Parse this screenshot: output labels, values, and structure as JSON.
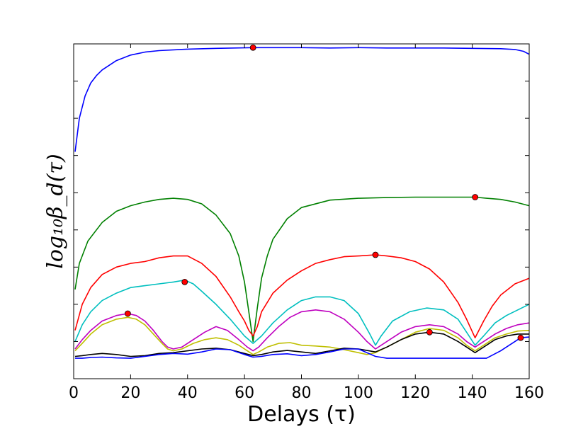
{
  "chart_data": {
    "type": "line",
    "title": "",
    "xlabel": "Delays (τ)",
    "ylabel": "log₁₀β_d(τ)",
    "xlim": [
      0,
      160
    ],
    "ylim": [
      0,
      9
    ],
    "grid": false,
    "legend": "none",
    "x_ticks": [
      0,
      20,
      40,
      60,
      80,
      100,
      120,
      140,
      160
    ],
    "x_tick_labels": [
      "0",
      "20",
      "40",
      "60",
      "80",
      "100",
      "120",
      "140",
      "160"
    ],
    "y_ticks": [
      1,
      2,
      3,
      4,
      5,
      6,
      7,
      8,
      9
    ],
    "y_tick_labels": [
      "",
      "",
      "",
      "",
      "",
      "",
      "",
      "",
      ""
    ],
    "series": [
      {
        "color": "#0000ff",
        "x": [
          0.5,
          1,
          2,
          4,
          6,
          8,
          10,
          15,
          20,
          25,
          30,
          40,
          50,
          63,
          70,
          80,
          90,
          100,
          110,
          120,
          130,
          140,
          150,
          155,
          158,
          160
        ],
        "values": [
          6.1,
          6.4,
          7.0,
          7.6,
          7.95,
          8.15,
          8.3,
          8.55,
          8.7,
          8.78,
          8.82,
          8.86,
          8.88,
          8.9,
          8.9,
          8.9,
          8.89,
          8.9,
          8.89,
          8.89,
          8.89,
          8.88,
          8.87,
          8.85,
          8.8,
          8.72
        ],
        "marker": {
          "x": 63,
          "y": 8.9
        }
      },
      {
        "color": "#008000",
        "x": [
          0.5,
          2,
          5,
          10,
          15,
          20,
          25,
          30,
          35,
          40,
          45,
          50,
          55,
          58,
          60,
          61.5,
          63,
          64.5,
          66,
          68,
          70,
          75,
          80,
          90,
          100,
          110,
          120,
          130,
          140,
          141,
          145,
          150,
          155,
          160
        ],
        "values": [
          2.4,
          3.1,
          3.7,
          4.2,
          4.5,
          4.65,
          4.75,
          4.82,
          4.85,
          4.82,
          4.7,
          4.4,
          3.9,
          3.3,
          2.6,
          1.8,
          1.0,
          1.9,
          2.7,
          3.3,
          3.75,
          4.3,
          4.6,
          4.8,
          4.85,
          4.87,
          4.88,
          4.88,
          4.88,
          4.88,
          4.85,
          4.82,
          4.75,
          4.65
        ],
        "marker": {
          "x": 141,
          "y": 4.88
        }
      },
      {
        "color": "#ff0000",
        "x": [
          0.5,
          3,
          6,
          10,
          15,
          20,
          25,
          30,
          35,
          40,
          45,
          50,
          55,
          58,
          60,
          61.5,
          63,
          64.5,
          66,
          70,
          75,
          80,
          85,
          90,
          95,
          100,
          106,
          110,
          115,
          120,
          125,
          130,
          135,
          138,
          141,
          144,
          147,
          150,
          155,
          160
        ],
        "values": [
          1.3,
          2.0,
          2.45,
          2.8,
          3.0,
          3.1,
          3.15,
          3.25,
          3.3,
          3.3,
          3.1,
          2.75,
          2.2,
          1.8,
          1.55,
          1.3,
          1.15,
          1.4,
          1.8,
          2.3,
          2.65,
          2.9,
          3.1,
          3.2,
          3.28,
          3.3,
          3.33,
          3.3,
          3.25,
          3.15,
          2.95,
          2.6,
          2.05,
          1.6,
          1.1,
          1.55,
          1.95,
          2.25,
          2.55,
          2.7
        ],
        "marker": {
          "x": 106,
          "y": 3.33
        }
      },
      {
        "color": "#00bfbf",
        "x": [
          0.5,
          3,
          6,
          10,
          15,
          20,
          25,
          30,
          35,
          39,
          42,
          45,
          50,
          55,
          60,
          63,
          66,
          70,
          75,
          80,
          85,
          90,
          95,
          100,
          104,
          106,
          108,
          112,
          118,
          124,
          130,
          135,
          138,
          141,
          144,
          148,
          152,
          156,
          160
        ],
        "values": [
          1.0,
          1.45,
          1.8,
          2.1,
          2.3,
          2.45,
          2.5,
          2.55,
          2.6,
          2.65,
          2.55,
          2.35,
          2.0,
          1.6,
          1.15,
          0.95,
          1.15,
          1.5,
          1.85,
          2.1,
          2.2,
          2.2,
          2.1,
          1.75,
          1.2,
          0.9,
          1.15,
          1.55,
          1.8,
          1.9,
          1.85,
          1.6,
          1.25,
          0.9,
          1.15,
          1.5,
          1.7,
          1.85,
          2.0
        ],
        "marker": {
          "x": 39,
          "y": 2.6
        }
      },
      {
        "color": "#bf00bf",
        "x": [
          0.5,
          3,
          6,
          10,
          15,
          19,
          22,
          25,
          28,
          31,
          33,
          35,
          38,
          42,
          46,
          50,
          54,
          58,
          61,
          63,
          65,
          68,
          72,
          76,
          80,
          85,
          90,
          95,
          100,
          103,
          106,
          110,
          115,
          120,
          125,
          130,
          135,
          138,
          141,
          144,
          148,
          152,
          156,
          160
        ],
        "values": [
          0.8,
          1.05,
          1.3,
          1.55,
          1.7,
          1.75,
          1.7,
          1.55,
          1.3,
          1.0,
          0.85,
          0.8,
          0.85,
          1.05,
          1.25,
          1.4,
          1.3,
          1.05,
          0.85,
          0.75,
          0.85,
          1.1,
          1.4,
          1.65,
          1.8,
          1.85,
          1.8,
          1.6,
          1.25,
          1.0,
          0.8,
          1.0,
          1.25,
          1.4,
          1.45,
          1.4,
          1.2,
          1.0,
          0.85,
          1.0,
          1.2,
          1.35,
          1.45,
          1.5
        ],
        "marker": {
          "x": 19,
          "y": 1.75
        }
      },
      {
        "color": "#bfbf00",
        "x": [
          0.5,
          3,
          6,
          10,
          15,
          19,
          22,
          25,
          28,
          31,
          33,
          35,
          38,
          42,
          46,
          50,
          54,
          58,
          61,
          63,
          65,
          68,
          72,
          76,
          80,
          85,
          90,
          95,
          100,
          103,
          106,
          110,
          115,
          120,
          125,
          130,
          135,
          138,
          141,
          144,
          148,
          152,
          156,
          160
        ],
        "values": [
          0.75,
          0.95,
          1.2,
          1.45,
          1.6,
          1.65,
          1.6,
          1.45,
          1.2,
          0.95,
          0.8,
          0.75,
          0.8,
          0.95,
          1.05,
          1.1,
          1.05,
          0.9,
          0.75,
          0.65,
          0.72,
          0.85,
          0.95,
          0.97,
          0.9,
          0.88,
          0.85,
          0.78,
          0.7,
          0.65,
          0.7,
          0.85,
          1.05,
          1.25,
          1.35,
          1.3,
          1.1,
          0.9,
          0.75,
          0.9,
          1.1,
          1.2,
          1.28,
          1.3
        ],
        "marker": null
      },
      {
        "color": "#000000",
        "x": [
          0.5,
          3,
          6,
          10,
          15,
          20,
          25,
          30,
          35,
          40,
          45,
          50,
          55,
          60,
          63,
          66,
          70,
          75,
          80,
          85,
          90,
          95,
          100,
          106,
          110,
          115,
          120,
          125,
          130,
          135,
          138,
          141,
          144,
          148,
          152,
          156,
          160
        ],
        "values": [
          0.6,
          0.62,
          0.65,
          0.68,
          0.65,
          0.6,
          0.62,
          0.68,
          0.7,
          0.75,
          0.8,
          0.82,
          0.78,
          0.68,
          0.62,
          0.65,
          0.72,
          0.76,
          0.72,
          0.68,
          0.75,
          0.82,
          0.8,
          0.72,
          0.85,
          1.05,
          1.2,
          1.25,
          1.2,
          1.0,
          0.85,
          0.7,
          0.85,
          1.05,
          1.15,
          1.2,
          1.2
        ],
        "marker": {
          "x": 125,
          "y": 1.25
        }
      },
      {
        "color": "#0000ff",
        "x": [
          0.5,
          3,
          6,
          10,
          15,
          20,
          25,
          30,
          35,
          40,
          45,
          50,
          55,
          60,
          63,
          66,
          70,
          75,
          80,
          85,
          90,
          95,
          100,
          106,
          110,
          115,
          120,
          130,
          140,
          145,
          150,
          155,
          157,
          160
        ],
        "values": [
          0.55,
          0.55,
          0.57,
          0.58,
          0.56,
          0.55,
          0.6,
          0.65,
          0.68,
          0.66,
          0.72,
          0.8,
          0.78,
          0.65,
          0.58,
          0.6,
          0.65,
          0.67,
          0.62,
          0.65,
          0.72,
          0.8,
          0.8,
          0.6,
          0.55,
          0.55,
          0.55,
          0.55,
          0.55,
          0.55,
          0.75,
          1.0,
          1.1,
          1.12
        ],
        "marker": {
          "x": 157,
          "y": 1.1
        }
      }
    ]
  }
}
